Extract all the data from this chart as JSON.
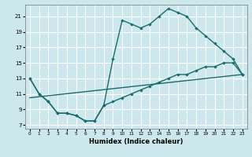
{
  "xlabel": "Humidex (Indice chaleur)",
  "bg_color": "#cce8ed",
  "grid_color": "#ffffff",
  "line_color": "#1a6b6b",
  "xlim": [
    -0.5,
    23.5
  ],
  "ylim": [
    6.5,
    22.5
  ],
  "xticks": [
    0,
    1,
    2,
    3,
    4,
    5,
    6,
    7,
    8,
    9,
    10,
    11,
    12,
    13,
    14,
    15,
    16,
    17,
    18,
    19,
    20,
    21,
    22,
    23
  ],
  "yticks": [
    7,
    9,
    11,
    13,
    15,
    17,
    19,
    21
  ],
  "line1_x": [
    0,
    1,
    2,
    3,
    4,
    5,
    6,
    7,
    8,
    9,
    10,
    11,
    12,
    13,
    14,
    15,
    16,
    17,
    18,
    19,
    20,
    21,
    22,
    23
  ],
  "line1_y": [
    13,
    11,
    10,
    8.5,
    8.5,
    8.2,
    7.5,
    7.5,
    9.5,
    15.5,
    20.5,
    20,
    19.5,
    20,
    21,
    22,
    21.5,
    21,
    19.5,
    18.5,
    17.5,
    16.5,
    15.5,
    13.5
  ],
  "line2_x": [
    0,
    1,
    2,
    3,
    4,
    5,
    6,
    7,
    8,
    9,
    10,
    11,
    12,
    13,
    14,
    15,
    16,
    17,
    18,
    19,
    20,
    21,
    22,
    23
  ],
  "line2_y": [
    13,
    11,
    10,
    8.5,
    8.5,
    8.2,
    7.5,
    7.5,
    9.5,
    10,
    10.5,
    11,
    11.5,
    12,
    12.5,
    13,
    13.5,
    13.5,
    14,
    14.5,
    14.5,
    15,
    15,
    13.5
  ],
  "line3_x": [
    0,
    23
  ],
  "line3_y": [
    10.5,
    13.5
  ]
}
